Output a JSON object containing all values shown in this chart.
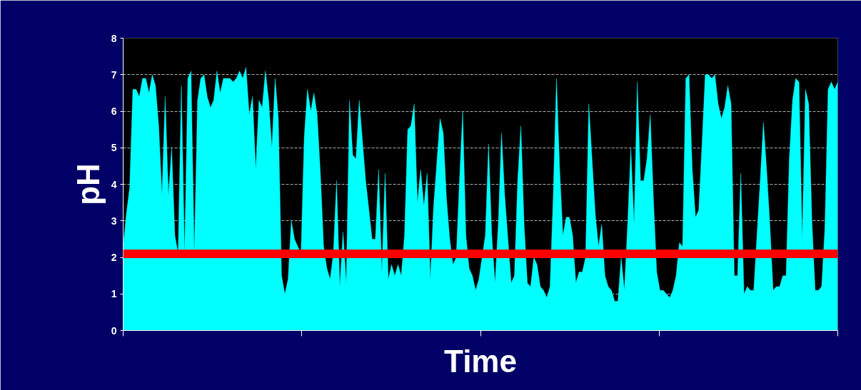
{
  "chart_data": {
    "type": "area",
    "xlabel": "Time",
    "ylabel": "pH",
    "color": "#00ffff",
    "ylim": [
      0,
      8
    ],
    "yticks": [
      0,
      1,
      2,
      3,
      4,
      5,
      6,
      7,
      8
    ],
    "grid": "y",
    "tick_labels": "y",
    "ref_lines": [
      {
        "axis": "y",
        "value": 2.1,
        "label": null,
        "color": "#ff0000"
      }
    ],
    "categories": [
      null,
      null,
      null,
      null,
      null,
      null,
      null,
      null,
      null,
      null,
      null,
      null,
      null,
      null,
      null,
      null,
      null,
      null,
      null,
      null,
      null,
      null,
      null,
      null,
      null,
      null,
      null,
      null,
      null,
      null,
      null,
      null,
      null,
      null,
      null,
      null,
      null,
      null,
      null,
      null,
      null,
      null,
      null,
      null,
      null,
      null,
      null,
      null,
      null,
      null,
      null,
      null,
      null,
      null,
      null,
      null,
      null,
      null,
      null,
      null,
      null,
      null,
      null,
      null,
      null,
      null,
      null,
      null,
      null,
      null,
      null,
      null,
      null,
      null,
      null,
      null,
      null,
      null,
      null,
      null,
      null,
      null,
      null,
      null,
      null,
      null,
      null,
      null,
      null,
      null,
      null,
      null,
      null,
      null,
      null,
      null,
      null,
      null,
      null,
      null,
      null,
      null,
      null,
      null,
      null,
      null,
      null,
      null,
      null,
      null,
      null,
      null,
      null,
      null,
      null,
      null,
      null,
      null,
      null,
      null,
      null,
      null,
      null,
      null,
      null,
      null,
      null,
      null,
      null,
      null,
      null,
      null,
      null,
      null,
      null,
      null,
      null,
      null,
      null,
      null,
      null,
      null,
      null,
      null,
      null,
      null,
      null,
      null,
      null,
      null,
      null,
      null,
      null,
      null,
      null,
      null,
      null,
      null,
      null,
      null,
      null,
      null,
      null,
      null,
      null,
      null,
      null,
      null,
      null,
      null,
      null,
      null,
      null,
      null,
      null,
      null,
      null,
      null,
      null,
      null,
      null,
      null,
      null,
      null,
      null,
      null,
      null,
      null,
      null,
      null,
      null,
      null,
      null,
      null,
      null,
      null,
      null,
      null,
      null,
      null,
      null,
      null,
      null,
      null,
      null,
      null,
      null,
      null,
      null,
      null,
      null,
      null,
      null,
      null,
      null,
      null,
      null,
      null,
      null,
      null,
      null,
      null
    ],
    "values": [
      2.3,
      3.2,
      3.9,
      6.6,
      6.6,
      6.4,
      6.9,
      6.9,
      6.5,
      7.0,
      6.7,
      5.6,
      3.7,
      6.4,
      3.7,
      5.0,
      2.6,
      2.1,
      6.7,
      2.1,
      6.9,
      7.1,
      2.1,
      6.3,
      6.9,
      7.0,
      6.4,
      6.1,
      6.3,
      7.1,
      6.5,
      6.9,
      6.9,
      6.9,
      6.8,
      6.9,
      7.1,
      6.9,
      7.2,
      5.9,
      6.4,
      4.4,
      6.3,
      6.1,
      7.1,
      6.3,
      5.0,
      6.9,
      5.8,
      1.5,
      1.0,
      1.4,
      3.0,
      2.5,
      2.3,
      2.1,
      5.3,
      6.6,
      6.0,
      6.5,
      5.9,
      4.3,
      2.3,
      1.7,
      1.4,
      2.1,
      4.1,
      1.2,
      2.7,
      1.3,
      6.3,
      4.8,
      4.7,
      6.3,
      5.2,
      4.1,
      3.3,
      2.5,
      2.5,
      4.4,
      1.6,
      4.3,
      1.4,
      1.8,
      1.5,
      1.8,
      1.5,
      2.6,
      5.5,
      5.6,
      6.2,
      3.5,
      4.4,
      3.4,
      4.3,
      1.4,
      3.4,
      4.6,
      5.8,
      5.4,
      3.6,
      2.5,
      1.8,
      2.0,
      4.1,
      6.0,
      2.6,
      1.7,
      1.5,
      1.1,
      1.4,
      2.0,
      2.6,
      5.1,
      2.6,
      1.3,
      2.9,
      5.4,
      3.7,
      2.5,
      1.3,
      1.5,
      4.1,
      5.6,
      2.9,
      1.3,
      1.2,
      2.0,
      1.8,
      1.2,
      1.1,
      0.9,
      1.2,
      3.7,
      6.9,
      4.4,
      2.6,
      3.1,
      3.1,
      2.6,
      1.3,
      1.6,
      1.6,
      2.0,
      6.2,
      4.7,
      3.2,
      2.3,
      2.9,
      1.5,
      1.2,
      1.1,
      0.8,
      0.8,
      2.0,
      1.1,
      2.9,
      5.0,
      2.9,
      6.8,
      4.1,
      4.1,
      4.7,
      5.9,
      3.6,
      1.6,
      1.1,
      1.1,
      1.0,
      0.9,
      1.1,
      1.5,
      2.4,
      2.3,
      6.9,
      7.0,
      4.4,
      3.1,
      3.3,
      5.1,
      7.0,
      7.0,
      6.9,
      7.0,
      6.2,
      5.8,
      6.1,
      6.7,
      6.2,
      1.5,
      1.5,
      4.3,
      1.0,
      1.2,
      1.1,
      1.1,
      2.6,
      4.1,
      5.7,
      4.4,
      2.9,
      1.1,
      1.2,
      1.2,
      1.5,
      1.5,
      4.7,
      6.3,
      6.9,
      6.8,
      2.5,
      6.6,
      6.2,
      3.0,
      1.1,
      1.1,
      1.2,
      2.8,
      6.6,
      6.8,
      6.6,
      6.8
    ]
  }
}
